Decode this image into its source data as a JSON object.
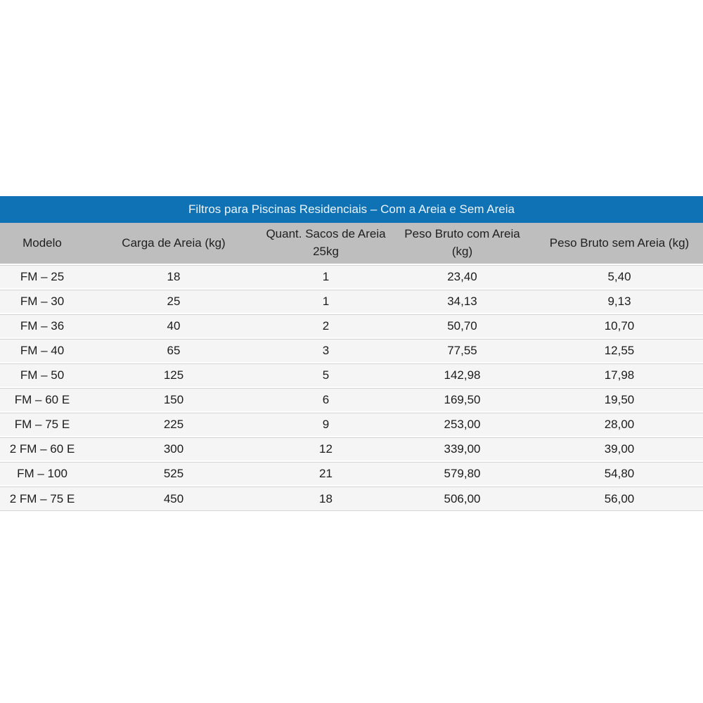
{
  "chart_data": {
    "type": "table",
    "title": "Filtros para Piscinas Residenciais – Com a Areia e Sem Areia",
    "columns": [
      "Modelo",
      "Carga de Areia (kg)",
      "Quant. Sacos de Areia\n25kg",
      "Peso Bruto com Areia\n(kg)",
      "Peso Bruto sem Areia (kg)"
    ],
    "rows": [
      [
        "FM – 25",
        "18",
        "1",
        "23,40",
        "5,40"
      ],
      [
        "FM – 30",
        "25",
        "1",
        "34,13",
        "9,13"
      ],
      [
        "FM – 36",
        "40",
        "2",
        "50,70",
        "10,70"
      ],
      [
        "FM – 40",
        "65",
        "3",
        "77,55",
        "12,55"
      ],
      [
        "FM – 50",
        "125",
        "5",
        "142,98",
        "17,98"
      ],
      [
        "FM – 60 E",
        "150",
        "6",
        "169,50",
        "19,50"
      ],
      [
        "FM – 75 E",
        "225",
        "9",
        "253,00",
        "28,00"
      ],
      [
        "2 FM – 60 E",
        "300",
        "12",
        "339,00",
        "39,00"
      ],
      [
        "FM – 100",
        "525",
        "21",
        "579,80",
        "54,80"
      ],
      [
        "2 FM – 75 E",
        "450",
        "18",
        "506,00",
        "56,00"
      ]
    ],
    "layout_hints": {
      "title_position": "top-bar",
      "alignment": "center",
      "grid": "horizontal-separators-only"
    }
  },
  "colors": {
    "title_bar_bg": "#0e72b5",
    "title_text": "#ecf4fb",
    "header_bg": "#bebebe",
    "row_bg": "#f5f5f5",
    "separator": "#d4d4d4",
    "body_text": "#1c1c1c",
    "page_bg": "#ffffff"
  }
}
